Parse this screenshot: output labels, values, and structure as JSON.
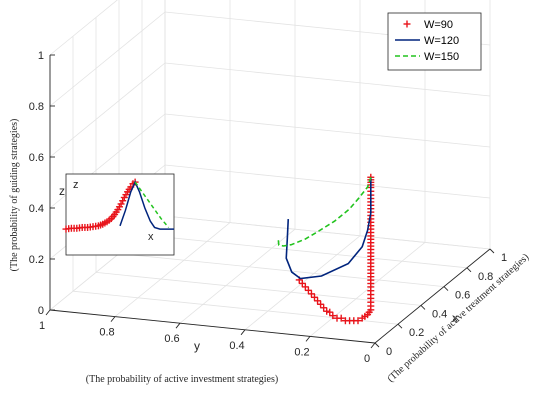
{
  "chart_data": {
    "type": "line",
    "projection": "3d",
    "legend_position": "top-right",
    "grid": true,
    "axes": {
      "x": {
        "name": "x",
        "description": "(The probability of active treatment strategies)",
        "range": [
          0,
          1
        ],
        "ticks": [
          "0",
          "0.2",
          "0.4",
          "0.6",
          "0.8",
          "1"
        ]
      },
      "y": {
        "name": "y",
        "description": "(The probability of active investment strategies)",
        "range": [
          0,
          1
        ],
        "ticks": [
          "0",
          "0.2",
          "0.4",
          "0.6",
          "0.8",
          "1"
        ]
      },
      "z": {
        "name": "z",
        "description": "(The probability of guiding strategies)",
        "range": [
          0,
          1
        ],
        "ticks": [
          "0",
          "0.2",
          "0.4",
          "0.6",
          "0.8",
          "1"
        ]
      }
    },
    "series": [
      {
        "name": "W=90",
        "marker": "+",
        "color": "#e8141b",
        "points": [
          [
            0.02,
            0.02,
            0.64
          ],
          [
            0.02,
            0.02,
            0.62
          ],
          [
            0.02,
            0.02,
            0.6
          ],
          [
            0.02,
            0.02,
            0.57
          ],
          [
            0.02,
            0.02,
            0.53
          ],
          [
            0.02,
            0.02,
            0.49
          ],
          [
            0.02,
            0.02,
            0.45
          ],
          [
            0.02,
            0.02,
            0.41
          ],
          [
            0.02,
            0.02,
            0.37
          ],
          [
            0.02,
            0.02,
            0.33
          ],
          [
            0.02,
            0.02,
            0.29
          ],
          [
            0.02,
            0.02,
            0.25
          ],
          [
            0.02,
            0.02,
            0.21
          ],
          [
            0.02,
            0.02,
            0.18
          ],
          [
            0.02,
            0.02,
            0.15
          ],
          [
            0.02,
            0.02,
            0.12
          ],
          [
            0.02,
            0.03,
            0.1
          ],
          [
            0.03,
            0.05,
            0.08
          ],
          [
            0.05,
            0.07,
            0.06
          ],
          [
            0.07,
            0.09,
            0.05
          ],
          [
            0.09,
            0.11,
            0.04
          ],
          [
            0.11,
            0.13,
            0.03
          ],
          [
            0.13,
            0.15,
            0.03
          ],
          [
            0.15,
            0.17,
            0.02
          ],
          [
            0.17,
            0.19,
            0.02
          ],
          [
            0.2,
            0.21,
            0.02
          ],
          [
            0.23,
            0.23,
            0.01
          ],
          [
            0.26,
            0.25,
            0.01
          ],
          [
            0.29,
            0.27,
            0.01
          ],
          [
            0.32,
            0.29,
            0.01
          ],
          [
            0.35,
            0.31,
            0.01
          ],
          [
            0.38,
            0.33,
            0.01
          ],
          [
            0.41,
            0.35,
            0.01
          ],
          [
            0.44,
            0.37,
            0.01
          ],
          [
            0.47,
            0.39,
            0.01
          ],
          [
            0.5,
            0.41,
            0.01
          ]
        ]
      },
      {
        "name": "W=120",
        "marker": "",
        "line": "solid",
        "color": "#00247d",
        "points": [
          [
            0.02,
            0.02,
            0.64
          ],
          [
            0.02,
            0.02,
            0.58
          ],
          [
            0.02,
            0.02,
            0.5
          ],
          [
            0.02,
            0.03,
            0.43
          ],
          [
            0.03,
            0.05,
            0.36
          ],
          [
            0.05,
            0.1,
            0.28
          ],
          [
            0.1,
            0.2,
            0.2
          ],
          [
            0.2,
            0.3,
            0.14
          ],
          [
            0.35,
            0.38,
            0.1
          ],
          [
            0.5,
            0.45,
            0.09
          ],
          [
            0.65,
            0.5,
            0.1
          ],
          [
            0.8,
            0.55,
            0.12
          ]
        ]
      },
      {
        "name": "W=150",
        "marker": "",
        "line": "dashed",
        "color": "#22c31e",
        "points": [
          [
            0.02,
            0.02,
            0.64
          ],
          [
            0.02,
            0.03,
            0.6
          ],
          [
            0.03,
            0.06,
            0.55
          ],
          [
            0.06,
            0.1,
            0.49
          ],
          [
            0.1,
            0.16,
            0.42
          ],
          [
            0.16,
            0.23,
            0.35
          ],
          [
            0.24,
            0.3,
            0.28
          ],
          [
            0.32,
            0.37,
            0.22
          ],
          [
            0.42,
            0.43,
            0.17
          ],
          [
            0.52,
            0.48,
            0.13
          ],
          [
            0.6,
            0.51,
            0.12
          ]
        ]
      }
    ],
    "inset": {
      "z_label": "z",
      "x_label": "x",
      "series": [
        {
          "name": "W=90",
          "marker": "+",
          "color": "#e8141b",
          "points": [
            [
              0.0,
              0.32
            ],
            [
              0.05,
              0.33
            ],
            [
              0.1,
              0.33
            ],
            [
              0.15,
              0.34
            ],
            [
              0.2,
              0.34
            ],
            [
              0.25,
              0.35
            ],
            [
              0.3,
              0.36
            ],
            [
              0.34,
              0.38
            ],
            [
              0.38,
              0.41
            ],
            [
              0.42,
              0.45
            ],
            [
              0.45,
              0.5
            ],
            [
              0.48,
              0.56
            ],
            [
              0.51,
              0.63
            ],
            [
              0.54,
              0.71
            ],
            [
              0.57,
              0.78
            ],
            [
              0.6,
              0.84
            ],
            [
              0.62,
              0.88
            ],
            [
              0.64,
              0.9
            ]
          ]
        },
        {
          "name": "W=120",
          "line": "solid",
          "color": "#00247d",
          "points": [
            [
              0.5,
              0.36
            ],
            [
              0.55,
              0.55
            ],
            [
              0.6,
              0.78
            ],
            [
              0.64,
              0.9
            ],
            [
              0.68,
              0.78
            ],
            [
              0.73,
              0.58
            ],
            [
              0.78,
              0.42
            ],
            [
              0.82,
              0.34
            ],
            [
              0.87,
              0.32
            ],
            [
              1.0,
              0.32
            ]
          ]
        },
        {
          "name": "W=150",
          "line": "dashed",
          "color": "#22c31e",
          "points": [
            [
              0.64,
              0.9
            ],
            [
              0.72,
              0.75
            ],
            [
              0.8,
              0.6
            ],
            [
              0.88,
              0.45
            ],
            [
              0.95,
              0.34
            ]
          ]
        }
      ]
    }
  }
}
